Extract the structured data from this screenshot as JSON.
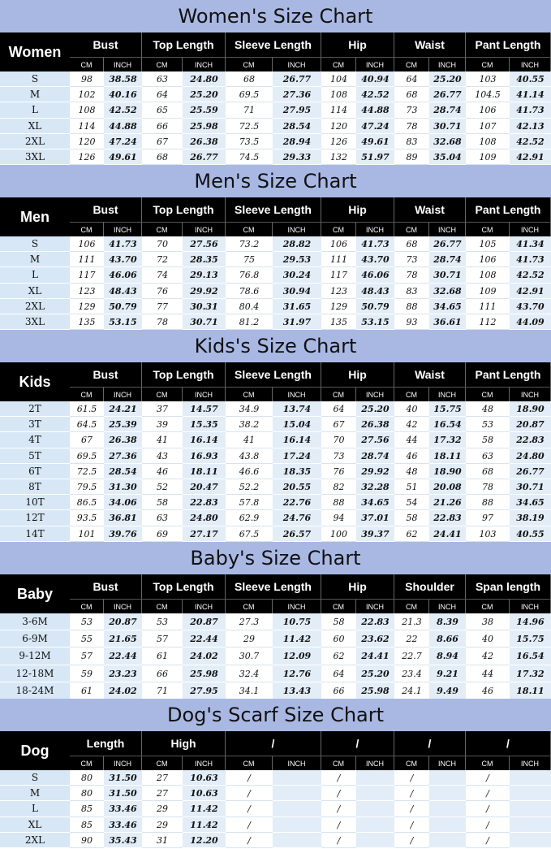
{
  "sections": [
    {
      "title": "Women's Size Chart",
      "corner": "Women",
      "groups": [
        "Bust",
        "Top Length",
        "Sleeve Length",
        "Hip",
        "Waist",
        "Pant Length"
      ],
      "units": [
        "CM",
        "INCH"
      ],
      "rows": [
        {
          "size": "S",
          "values": [
            "98",
            "38.58",
            "63",
            "24.80",
            "68",
            "26.77",
            "104",
            "40.94",
            "64",
            "25.20",
            "103",
            "40.55"
          ]
        },
        {
          "size": "M",
          "values": [
            "102",
            "40.16",
            "64",
            "25.20",
            "69.5",
            "27.36",
            "108",
            "42.52",
            "68",
            "26.77",
            "104.5",
            "41.14"
          ]
        },
        {
          "size": "L",
          "values": [
            "108",
            "42.52",
            "65",
            "25.59",
            "71",
            "27.95",
            "114",
            "44.88",
            "73",
            "28.74",
            "106",
            "41.73"
          ]
        },
        {
          "size": "XL",
          "values": [
            "114",
            "44.88",
            "66",
            "25.98",
            "72.5",
            "28.54",
            "120",
            "47.24",
            "78",
            "30.71",
            "107",
            "42.13"
          ]
        },
        {
          "size": "2XL",
          "values": [
            "120",
            "47.24",
            "67",
            "26.38",
            "73.5",
            "28.94",
            "126",
            "49.61",
            "83",
            "32.68",
            "108",
            "42.52"
          ]
        },
        {
          "size": "3XL",
          "values": [
            "126",
            "49.61",
            "68",
            "26.77",
            "74.5",
            "29.33",
            "132",
            "51.97",
            "89",
            "35.04",
            "109",
            "42.91"
          ]
        }
      ]
    },
    {
      "title": "Men's Size Chart",
      "corner": "Men",
      "groups": [
        "Bust",
        "Top Length",
        "Sleeve Length",
        "Hip",
        "Waist",
        "Pant Length"
      ],
      "units": [
        "CM",
        "INCH"
      ],
      "rows": [
        {
          "size": "S",
          "values": [
            "106",
            "41.73",
            "70",
            "27.56",
            "73.2",
            "28.82",
            "106",
            "41.73",
            "68",
            "26.77",
            "105",
            "41.34"
          ]
        },
        {
          "size": "M",
          "values": [
            "111",
            "43.70",
            "72",
            "28.35",
            "75",
            "29.53",
            "111",
            "43.70",
            "73",
            "28.74",
            "106",
            "41.73"
          ]
        },
        {
          "size": "L",
          "values": [
            "117",
            "46.06",
            "74",
            "29.13",
            "76.8",
            "30.24",
            "117",
            "46.06",
            "78",
            "30.71",
            "108",
            "42.52"
          ]
        },
        {
          "size": "XL",
          "values": [
            "123",
            "48.43",
            "76",
            "29.92",
            "78.6",
            "30.94",
            "123",
            "48.43",
            "83",
            "32.68",
            "109",
            "42.91"
          ]
        },
        {
          "size": "2XL",
          "values": [
            "129",
            "50.79",
            "77",
            "30.31",
            "80.4",
            "31.65",
            "129",
            "50.79",
            "88",
            "34.65",
            "111",
            "43.70"
          ]
        },
        {
          "size": "3XL",
          "values": [
            "135",
            "53.15",
            "78",
            "30.71",
            "81.2",
            "31.97",
            "135",
            "53.15",
            "93",
            "36.61",
            "112",
            "44.09"
          ]
        }
      ]
    },
    {
      "title": "Kids's  Size Chart",
      "corner": "Kids",
      "groups": [
        "Bust",
        "Top Length",
        "Sleeve Length",
        "Hip",
        "Waist",
        "Pant Length"
      ],
      "units": [
        "CM",
        "INCH"
      ],
      "rows": [
        {
          "size": "2T",
          "values": [
            "61.5",
            "24.21",
            "37",
            "14.57",
            "34.9",
            "13.74",
            "64",
            "25.20",
            "40",
            "15.75",
            "48",
            "18.90"
          ]
        },
        {
          "size": "3T",
          "values": [
            "64.5",
            "25.39",
            "39",
            "15.35",
            "38.2",
            "15.04",
            "67",
            "26.38",
            "42",
            "16.54",
            "53",
            "20.87"
          ]
        },
        {
          "size": "4T",
          "values": [
            "67",
            "26.38",
            "41",
            "16.14",
            "41",
            "16.14",
            "70",
            "27.56",
            "44",
            "17.32",
            "58",
            "22.83"
          ]
        },
        {
          "size": "5T",
          "values": [
            "69.5",
            "27.36",
            "43",
            "16.93",
            "43.8",
            "17.24",
            "73",
            "28.74",
            "46",
            "18.11",
            "63",
            "24.80"
          ]
        },
        {
          "size": "6T",
          "values": [
            "72.5",
            "28.54",
            "46",
            "18.11",
            "46.6",
            "18.35",
            "76",
            "29.92",
            "48",
            "18.90",
            "68",
            "26.77"
          ]
        },
        {
          "size": "8T",
          "values": [
            "79.5",
            "31.30",
            "52",
            "20.47",
            "52.2",
            "20.55",
            "82",
            "32.28",
            "51",
            "20.08",
            "78",
            "30.71"
          ]
        },
        {
          "size": "10T",
          "values": [
            "86.5",
            "34.06",
            "58",
            "22.83",
            "57.8",
            "22.76",
            "88",
            "34.65",
            "54",
            "21.26",
            "88",
            "34.65"
          ]
        },
        {
          "size": "12T",
          "values": [
            "93.5",
            "36.81",
            "63",
            "24.80",
            "62.9",
            "24.76",
            "94",
            "37.01",
            "58",
            "22.83",
            "97",
            "38.19"
          ]
        },
        {
          "size": "14T",
          "values": [
            "101",
            "39.76",
            "69",
            "27.17",
            "67.5",
            "26.57",
            "100",
            "39.37",
            "62",
            "24.41",
            "103",
            "40.55"
          ]
        }
      ]
    },
    {
      "title": "Baby's Size Chart",
      "corner": "Baby",
      "groups": [
        "Bust",
        "Top Length",
        "Sleeve Length",
        "Hip",
        "Shoulder",
        "Span length"
      ],
      "units": [
        "CM",
        "INCH"
      ],
      "rows": [
        {
          "size": "3-6M",
          "values": [
            "53",
            "20.87",
            "53",
            "20.87",
            "27.3",
            "10.75",
            "58",
            "22.83",
            "21.3",
            "8.39",
            "38",
            "14.96"
          ]
        },
        {
          "size": "6-9M",
          "values": [
            "55",
            "21.65",
            "57",
            "22.44",
            "29",
            "11.42",
            "60",
            "23.62",
            "22",
            "8.66",
            "40",
            "15.75"
          ]
        },
        {
          "size": "9-12M",
          "values": [
            "57",
            "22.44",
            "61",
            "24.02",
            "30.7",
            "12.09",
            "62",
            "24.41",
            "22.7",
            "8.94",
            "42",
            "16.54"
          ]
        },
        {
          "size": "12-18M",
          "values": [
            "59",
            "23.23",
            "66",
            "25.98",
            "32.4",
            "12.76",
            "64",
            "25.20",
            "23.4",
            "9.21",
            "44",
            "17.32"
          ]
        },
        {
          "size": "18-24M",
          "values": [
            "61",
            "24.02",
            "71",
            "27.95",
            "34.1",
            "13.43",
            "66",
            "25.98",
            "24.1",
            "9.49",
            "46",
            "18.11"
          ]
        }
      ]
    },
    {
      "title": "Dog's Scarf  Size Chart",
      "corner": "Dog",
      "groups": [
        "Length",
        "High",
        "/",
        "/",
        "/",
        "/"
      ],
      "units": [
        "CM",
        "INCH"
      ],
      "rows": [
        {
          "size": "S",
          "values": [
            "80",
            "31.50",
            "27",
            "10.63",
            "/",
            "",
            "/",
            "",
            "/",
            "",
            "/",
            ""
          ]
        },
        {
          "size": "M",
          "values": [
            "80",
            "31.50",
            "27",
            "10.63",
            "/",
            "",
            "/",
            "",
            "/",
            "",
            "/",
            ""
          ]
        },
        {
          "size": "L",
          "values": [
            "85",
            "33.46",
            "29",
            "11.42",
            "/",
            "",
            "/",
            "",
            "/",
            "",
            "/",
            ""
          ]
        },
        {
          "size": "XL",
          "values": [
            "85",
            "33.46",
            "29",
            "11.42",
            "/",
            "",
            "/",
            "",
            "/",
            "",
            "/",
            ""
          ]
        },
        {
          "size": "2XL",
          "values": [
            "90",
            "35.43",
            "31",
            "12.20",
            "/",
            "",
            "/",
            "",
            "/",
            "",
            "/",
            ""
          ]
        }
      ]
    }
  ]
}
